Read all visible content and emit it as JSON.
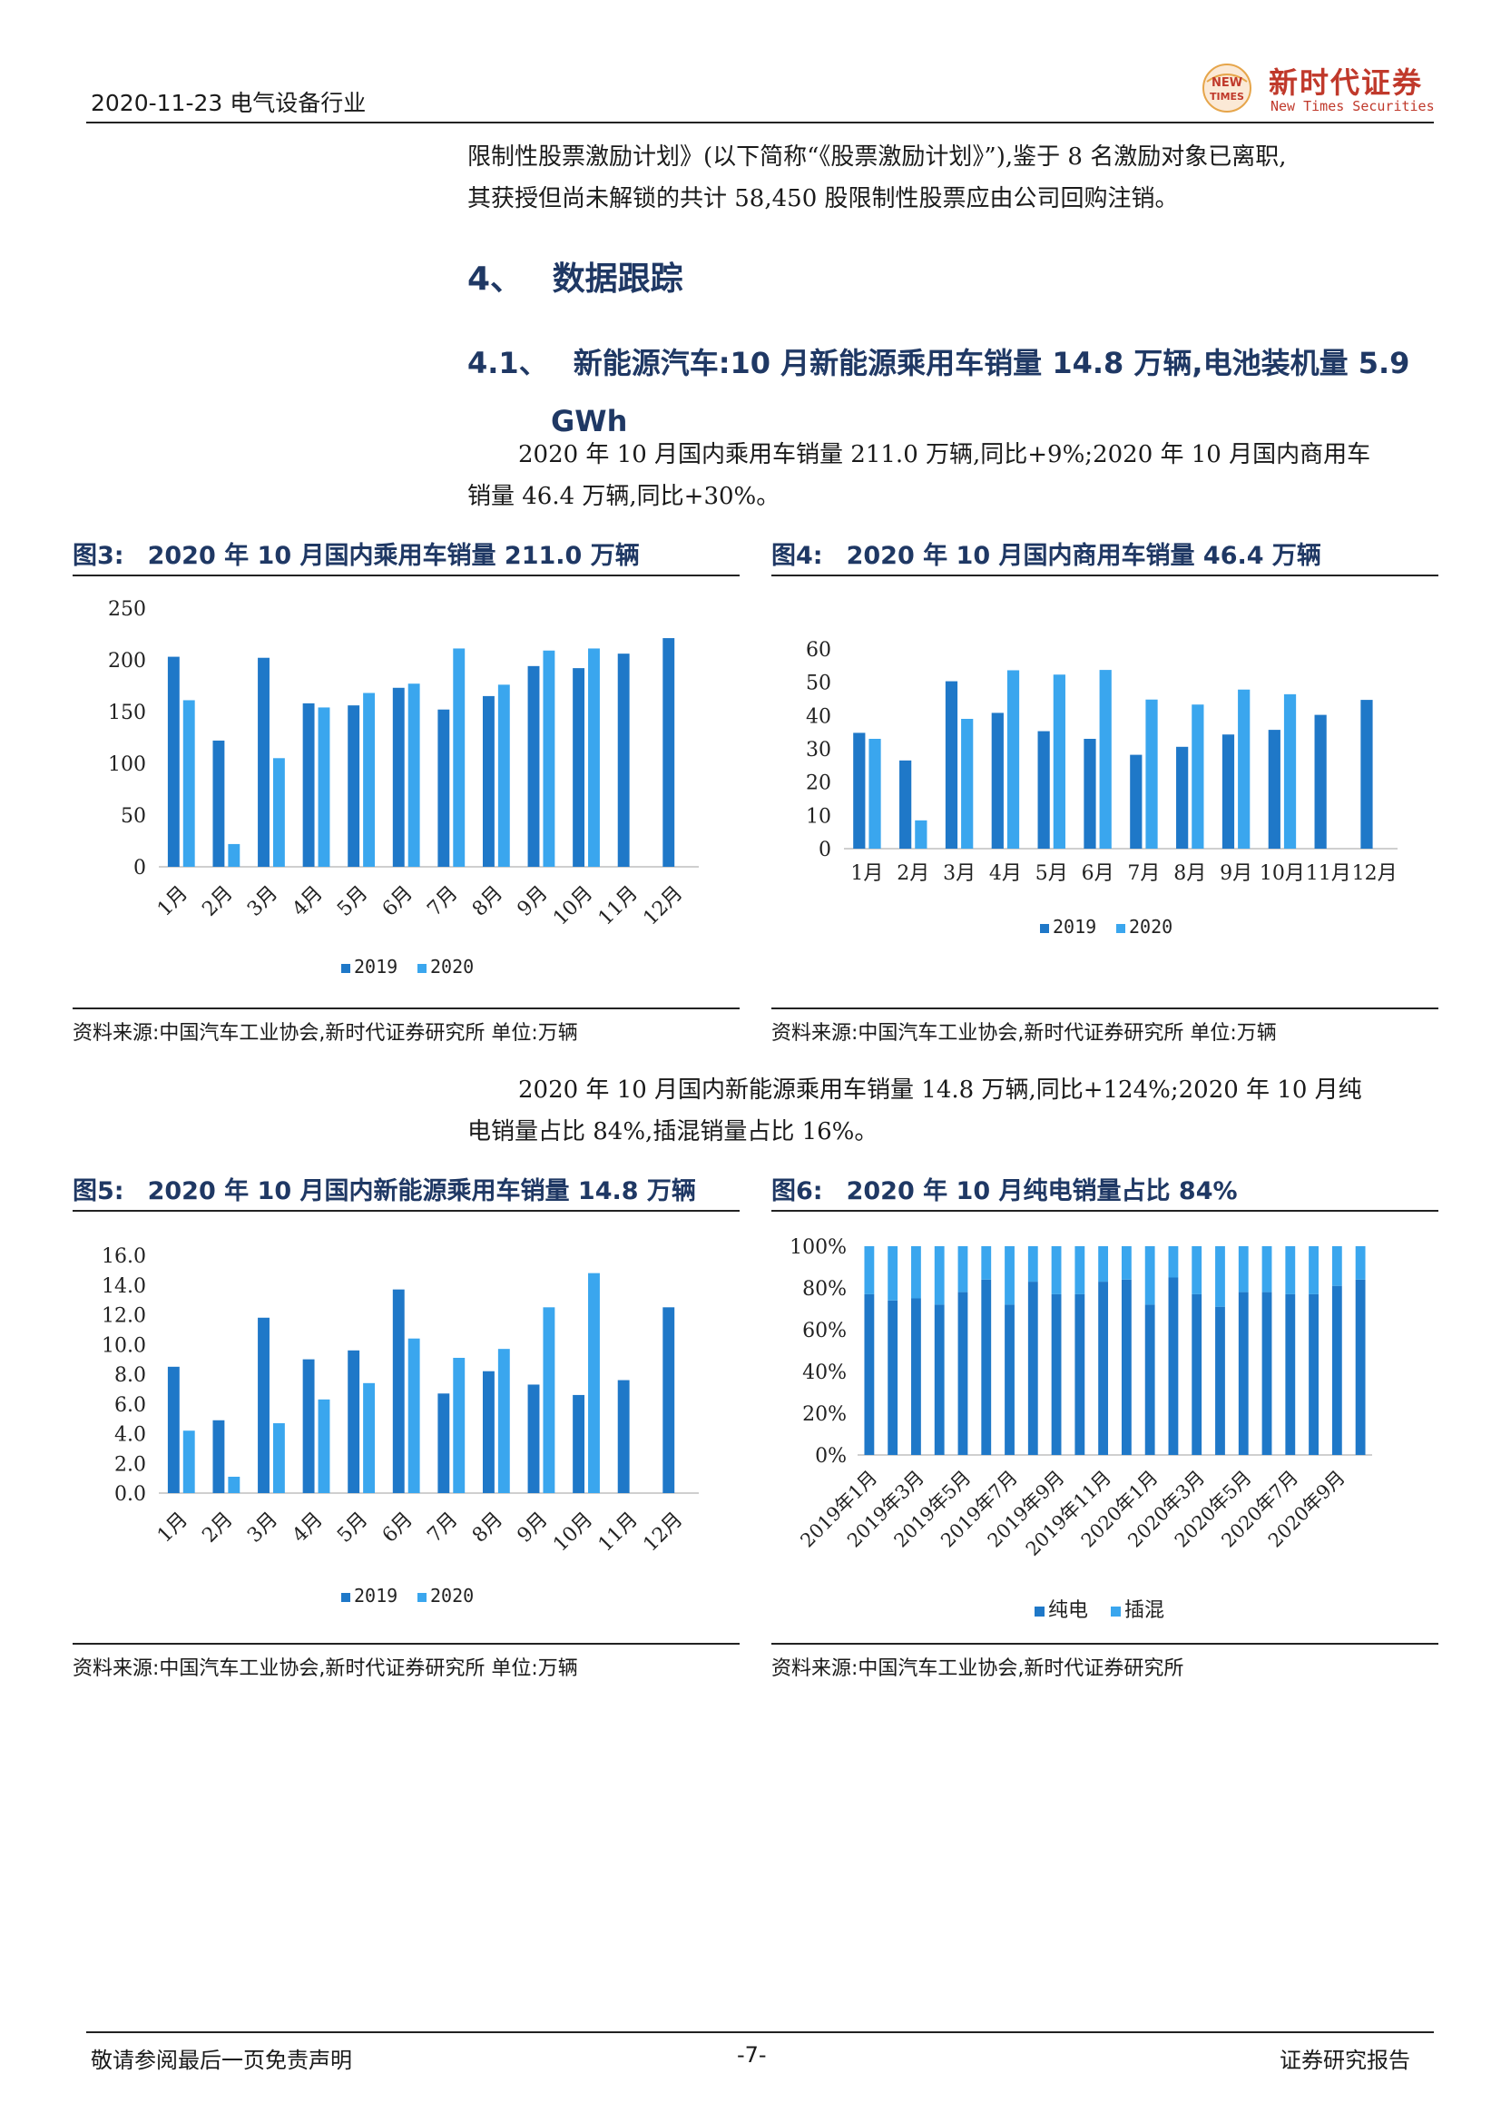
{
  "header": {
    "date_industry": "2020-11-23 电气设备行业",
    "logo_cn": "新时代证券",
    "logo_en": "New Times Securities",
    "logo_badge_top": "NEW",
    "logo_badge_bottom": "TIMES"
  },
  "intro": {
    "line1": "限制性股票激励计划》(以下简称“《股票激励计划》”),鉴于 8 名激励对象已离职,",
    "line2": "其获授但尚未解锁的共计 58,450 股限制性股票应由公司回购注销。"
  },
  "section": {
    "number": "4、",
    "title": "数据跟踪"
  },
  "subsection": {
    "number": "4.1、",
    "title": "新能源汽车:10 月新能源乘用车销量 14.8 万辆,电池装机量 5.9",
    "title_cont": "GWh"
  },
  "para1": {
    "line1": "2020 年 10 月国内乘用车销量 211.0 万辆,同比+9%;2020 年 10 月国内商用车",
    "line2": "销量 46.4 万辆,同比+30%。"
  },
  "para2": {
    "line1": "2020 年 10 月国内新能源乘用车销量 14.8 万辆,同比+124%;2020 年 10 月纯",
    "line2": "电销量占比 84%,插混销量占比 16%。"
  },
  "figures": {
    "fig3": {
      "label": "图3:",
      "title": "2020 年 10 月国内乘用车销量 211.0 万辆",
      "source": "资料来源:中国汽车工业协会,新时代证券研究所 单位:万辆"
    },
    "fig4": {
      "label": "图4:",
      "title": "2020 年 10 月国内商用车销量 46.4 万辆",
      "source": "资料来源:中国汽车工业协会,新时代证券研究所 单位:万辆"
    },
    "fig5": {
      "label": "图5:",
      "title": "2020 年 10 月国内新能源乘用车销量 14.8 万辆",
      "source": "资料来源:中国汽车工业协会,新时代证券研究所 单位:万辆"
    },
    "fig6": {
      "label": "图6:",
      "title": "2020 年 10 月纯电销量占比 84%",
      "source": "资料来源:中国汽车工业协会,新时代证券研究所"
    }
  },
  "colors": {
    "series_2019": "#1f78c8",
    "series_2020": "#3aa6ee",
    "heading": "#1f3864",
    "logo": "#c0392b"
  },
  "chart_data": [
    {
      "id": "fig3",
      "type": "bar",
      "categories": [
        "1月",
        "2月",
        "3月",
        "4月",
        "5月",
        "6月",
        "7月",
        "8月",
        "9月",
        "10月",
        "11月",
        "12月"
      ],
      "series": [
        {
          "name": "2019",
          "values": [
            203,
            122,
            202,
            158,
            156,
            173,
            152,
            165,
            194,
            192,
            206,
            221
          ]
        },
        {
          "name": "2020",
          "values": [
            161,
            22,
            105,
            154,
            168,
            177,
            211,
            176,
            209,
            211,
            null,
            null
          ]
        }
      ],
      "ylim": [
        0,
        250
      ],
      "yticks": [
        "0",
        "50",
        "100",
        "150",
        "200",
        "250"
      ],
      "legend": "bottom",
      "xlabel_rotated": true
    },
    {
      "id": "fig4",
      "type": "bar",
      "categories": [
        "1月",
        "2月",
        "3月",
        "4月",
        "5月",
        "6月",
        "7月",
        "8月",
        "9月",
        "10月",
        "11月",
        "12月"
      ],
      "series": [
        {
          "name": "2019",
          "values": [
            34.8,
            26.5,
            50.3,
            40.8,
            35.3,
            33.0,
            28.2,
            30.6,
            34.3,
            35.7,
            40.2,
            44.7
          ]
        },
        {
          "name": "2020",
          "values": [
            33.0,
            8.5,
            39.0,
            53.6,
            52.3,
            53.7,
            44.8,
            43.3,
            47.8,
            46.4,
            null,
            null
          ]
        }
      ],
      "ylim": [
        0,
        60
      ],
      "yticks": [
        "0",
        "10",
        "20",
        "30",
        "40",
        "50",
        "60"
      ],
      "legend": "bottom",
      "xlabel_rotated": false
    },
    {
      "id": "fig5",
      "type": "bar",
      "categories": [
        "1月",
        "2月",
        "3月",
        "4月",
        "5月",
        "6月",
        "7月",
        "8月",
        "9月",
        "10月",
        "11月",
        "12月"
      ],
      "series": [
        {
          "name": "2019",
          "values": [
            8.5,
            4.9,
            11.8,
            9.0,
            9.6,
            13.7,
            6.7,
            8.2,
            7.3,
            6.6,
            7.6,
            12.5
          ]
        },
        {
          "name": "2020",
          "values": [
            4.2,
            1.1,
            4.7,
            6.3,
            7.4,
            10.4,
            9.1,
            9.7,
            12.5,
            14.8,
            null,
            null
          ]
        }
      ],
      "ylim": [
        0,
        16
      ],
      "yticks": [
        "0.0",
        "2.0",
        "4.0",
        "6.0",
        "8.0",
        "10.0",
        "12.0",
        "14.0",
        "16.0"
      ],
      "legend": "bottom",
      "xlabel_rotated": true
    },
    {
      "id": "fig6",
      "type": "bar",
      "stacked": true,
      "percent": true,
      "categories": [
        "2019年1月",
        "2019年2月",
        "2019年3月",
        "2019年4月",
        "2019年5月",
        "2019年6月",
        "2019年7月",
        "2019年8月",
        "2019年9月",
        "2019年10月",
        "2019年11月",
        "2019年12月",
        "2020年1月",
        "2020年2月",
        "2020年3月",
        "2020年4月",
        "2020年5月",
        "2020年6月",
        "2020年7月",
        "2020年8月",
        "2020年9月",
        "2020年10月"
      ],
      "xtick_labels": [
        "2019年1月",
        "2019年3月",
        "2019年5月",
        "2019年7月",
        "2019年9月",
        "2019年11月",
        "2020年1月",
        "2020年3月",
        "2020年5月",
        "2020年7月",
        "2020年9月"
      ],
      "series": [
        {
          "name": "纯电",
          "values": [
            0.77,
            0.74,
            0.75,
            0.72,
            0.78,
            0.84,
            0.72,
            0.83,
            0.77,
            0.77,
            0.83,
            0.84,
            0.72,
            0.85,
            0.77,
            0.71,
            0.78,
            0.78,
            0.77,
            0.77,
            0.81,
            0.84
          ]
        },
        {
          "name": "插混",
          "values": [
            0.23,
            0.26,
            0.25,
            0.28,
            0.22,
            0.16,
            0.28,
            0.17,
            0.23,
            0.23,
            0.17,
            0.16,
            0.28,
            0.15,
            0.23,
            0.29,
            0.22,
            0.22,
            0.23,
            0.23,
            0.19,
            0.16
          ]
        }
      ],
      "ylim": [
        0,
        1
      ],
      "yticks": [
        "0%",
        "20%",
        "40%",
        "60%",
        "80%",
        "100%"
      ],
      "legend": "bottom"
    }
  ],
  "footer": {
    "left": "敬请参阅最后一页免责声明",
    "center": "-7-",
    "right": "证券研究报告"
  }
}
